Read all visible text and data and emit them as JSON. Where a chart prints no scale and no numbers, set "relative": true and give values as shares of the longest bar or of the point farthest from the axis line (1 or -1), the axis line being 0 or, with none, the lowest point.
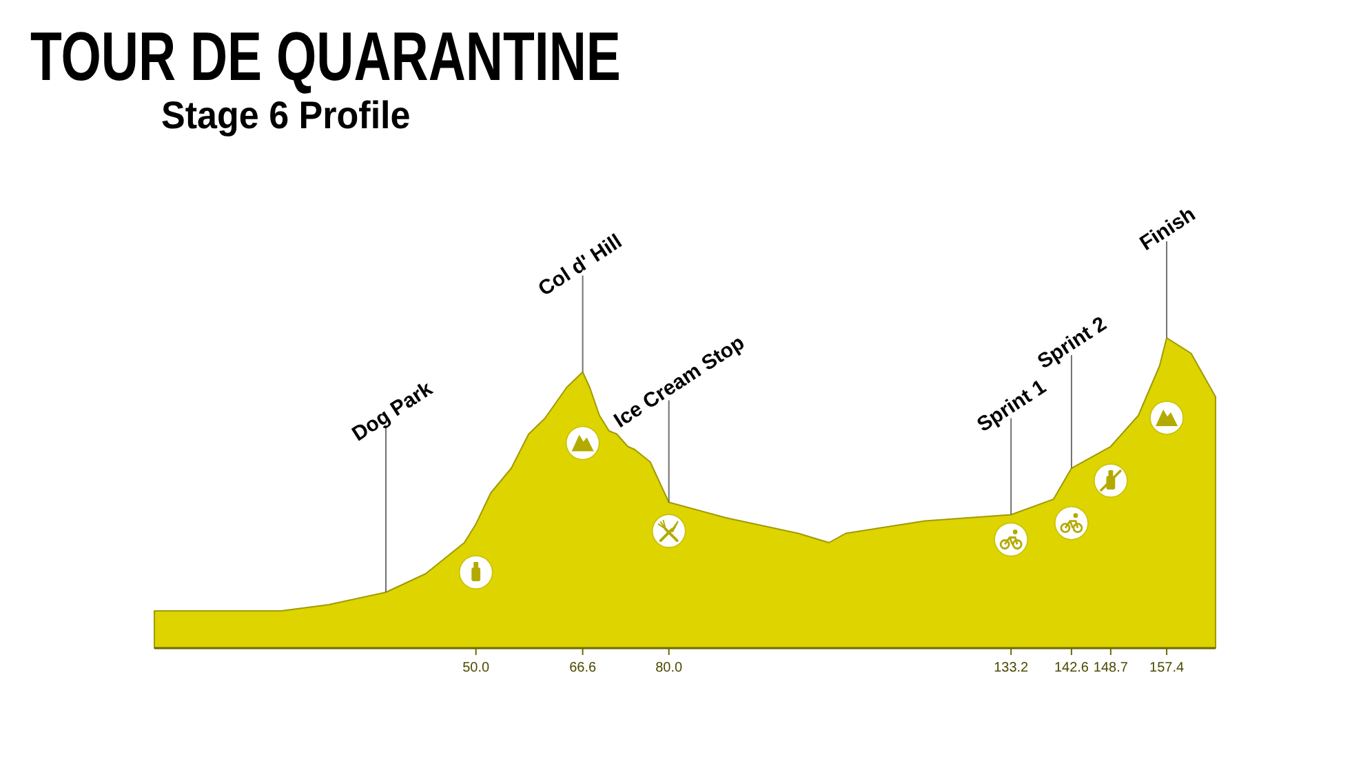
{
  "chart_data": {
    "type": "area",
    "title": "TOUR DE QUARANTINE",
    "subtitle": "Stage 6 Profile",
    "relative": true,
    "color": "#ddd400",
    "x": [
      0,
      8.5,
      19.7,
      27.1,
      36,
      42.2,
      48.2,
      50,
      52.3,
      55.5,
      58.2,
      60.7,
      64.1,
      66.6,
      67.7,
      69.2,
      70.7,
      71.9,
      73.6,
      74.7,
      77.1,
      79.1,
      80,
      88.9,
      100.1,
      104.9,
      107.5,
      119.8,
      133.2,
      139.8,
      142.6,
      148.7,
      153,
      156.3,
      157.4,
      161.2,
      165
    ],
    "values": [
      0.12,
      0.12,
      0.12,
      0.14,
      0.18,
      0.24,
      0.34,
      0.4,
      0.5,
      0.58,
      0.69,
      0.74,
      0.84,
      0.89,
      0.84,
      0.75,
      0.7,
      0.69,
      0.65,
      0.64,
      0.6,
      0.51,
      0.47,
      0.42,
      0.37,
      0.34,
      0.37,
      0.41,
      0.43,
      0.48,
      0.58,
      0.65,
      0.75,
      0.91,
      1,
      0.95,
      0.81
    ],
    "xlim": [
      0,
      165
    ],
    "xticks": [
      {
        "value": 50,
        "label": "50.0"
      },
      66.6,
      {
        "value": 80,
        "label": "80.0"
      },
      133.2,
      142.6,
      148.7,
      157.4
    ],
    "ref_lines": [
      {
        "axis": "x",
        "value": 36,
        "label": "Dog Park",
        "color": "#707070"
      },
      {
        "axis": "x",
        "value": 66.6,
        "label": "Col d' Hill",
        "color": "#707070"
      },
      {
        "axis": "x",
        "value": 80,
        "label": "Ice Cream Stop",
        "color": "#707070"
      },
      {
        "axis": "x",
        "value": 133.2,
        "label": "Sprint 1",
        "color": "#707070"
      },
      {
        "axis": "x",
        "value": 142.6,
        "label": "Sprint 2",
        "color": "#707070"
      },
      {
        "axis": "x",
        "value": 157.4,
        "label": "Finish",
        "color": "#707070"
      }
    ]
  }
}
